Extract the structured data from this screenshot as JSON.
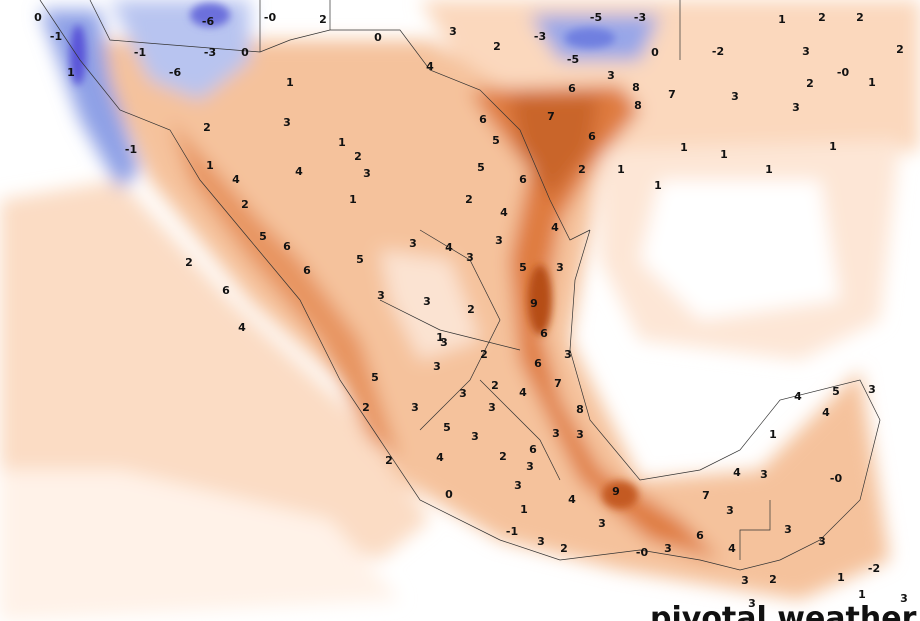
{
  "map": {
    "labels": [
      "0",
      "-1",
      "-6",
      "-0",
      "2",
      "0",
      "3",
      "2",
      "-3",
      "-5",
      "-3",
      "0",
      "-5",
      "-2",
      "3",
      "1",
      "2",
      "2",
      "2",
      "-0",
      "1",
      "2",
      "3",
      "7",
      "8",
      "8",
      "6",
      "3",
      "4",
      "1",
      "-6",
      "-1",
      "-3",
      "0",
      "1",
      "-1",
      "2",
      "3",
      "1",
      "2",
      "3",
      "4",
      "4",
      "2",
      "1",
      "6",
      "7",
      "5",
      "6",
      "6",
      "2",
      "5",
      "1",
      "1",
      "1",
      "1",
      "1",
      "1",
      "3",
      "1",
      "2",
      "4",
      "4",
      "3",
      "4",
      "3",
      "3",
      "5",
      "5",
      "6",
      "6",
      "2",
      "6",
      "4",
      "3",
      "3",
      "2",
      "5",
      "3",
      "9",
      "6",
      "6",
      "7",
      "3",
      "2",
      "3",
      "1",
      "5",
      "2",
      "3",
      "3",
      "3",
      "2",
      "4",
      "3",
      "5",
      "3",
      "2",
      "6",
      "3",
      "3",
      "3",
      "8",
      "2",
      "4",
      "0",
      "3",
      "4",
      "9",
      "1",
      "-1",
      "3",
      "2",
      "3",
      "7",
      "3",
      "6",
      "4",
      "-0",
      "3",
      "3",
      "3",
      "4",
      "5",
      "3",
      "4",
      "1",
      "4",
      "3",
      "-0",
      "3",
      "3",
      "2",
      "1",
      "-2",
      "3",
      "1"
    ]
  },
  "watermark": "pivotal weather"
}
